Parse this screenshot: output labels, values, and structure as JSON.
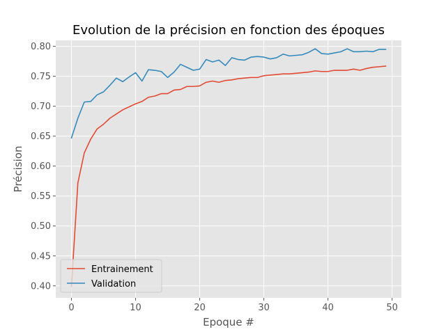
{
  "chart_data": {
    "type": "line",
    "title": "Evolution de la précision en fonction des époques",
    "xlabel": "Epoque #",
    "ylabel": "Précision",
    "xlim": [
      -2.45,
      51.45
    ],
    "ylim": [
      0.38,
      0.81
    ],
    "xticks": [
      0,
      10,
      20,
      30,
      40,
      50
    ],
    "yticks": [
      0.4,
      0.45,
      0.5,
      0.55,
      0.6,
      0.65,
      0.7,
      0.75,
      0.8
    ],
    "xtick_labels": [
      "0",
      "10",
      "20",
      "30",
      "40",
      "50"
    ],
    "ytick_labels": [
      "0.40",
      "0.45",
      "0.50",
      "0.55",
      "0.60",
      "0.65",
      "0.70",
      "0.75",
      "0.80"
    ],
    "grid": true,
    "legend_position": "lower-left",
    "x": [
      0,
      1,
      2,
      3,
      4,
      5,
      6,
      7,
      8,
      9,
      10,
      11,
      12,
      13,
      14,
      15,
      16,
      17,
      18,
      19,
      20,
      21,
      22,
      23,
      24,
      25,
      26,
      27,
      28,
      29,
      30,
      31,
      32,
      33,
      34,
      35,
      36,
      37,
      38,
      39,
      40,
      41,
      42,
      43,
      44,
      45,
      46,
      47,
      48,
      49
    ],
    "series": [
      {
        "name": "Entrainement",
        "color": "#e24a33",
        "values": [
          0.399,
          0.572,
          0.622,
          0.645,
          0.662,
          0.67,
          0.68,
          0.687,
          0.694,
          0.699,
          0.704,
          0.708,
          0.715,
          0.717,
          0.721,
          0.721,
          0.727,
          0.728,
          0.733,
          0.733,
          0.734,
          0.74,
          0.742,
          0.74,
          0.743,
          0.744,
          0.746,
          0.747,
          0.748,
          0.748,
          0.751,
          0.752,
          0.753,
          0.754,
          0.754,
          0.755,
          0.756,
          0.757,
          0.759,
          0.758,
          0.758,
          0.76,
          0.76,
          0.76,
          0.762,
          0.76,
          0.763,
          0.765,
          0.766,
          0.767
        ]
      },
      {
        "name": "Validation",
        "color": "#348abd",
        "values": [
          0.647,
          0.68,
          0.707,
          0.708,
          0.719,
          0.724,
          0.735,
          0.747,
          0.741,
          0.749,
          0.756,
          0.742,
          0.761,
          0.76,
          0.758,
          0.748,
          0.757,
          0.77,
          0.765,
          0.76,
          0.762,
          0.778,
          0.774,
          0.777,
          0.768,
          0.781,
          0.778,
          0.777,
          0.782,
          0.783,
          0.782,
          0.779,
          0.781,
          0.787,
          0.784,
          0.785,
          0.786,
          0.79,
          0.796,
          0.788,
          0.787,
          0.789,
          0.791,
          0.796,
          0.791,
          0.791,
          0.792,
          0.791,
          0.795,
          0.795
        ]
      }
    ]
  }
}
